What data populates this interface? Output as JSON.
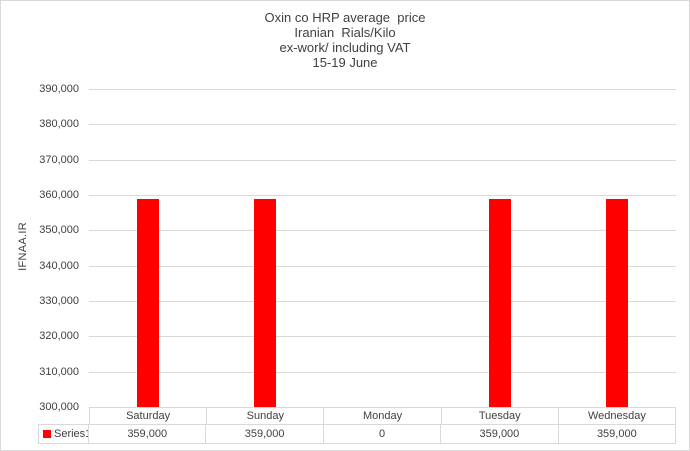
{
  "title": {
    "lines": [
      "Oxin co HRP average  price",
      "Iranian  Rials/Kilo",
      "ex-work/ including VAT",
      "15-19 June"
    ]
  },
  "y_axis": {
    "title": "IFNAA.IR"
  },
  "legend": {
    "series_label": "Series1",
    "swatch_color": "#ff0000"
  },
  "colors": {
    "bar": "#ff0000",
    "gridline": "#d9d9d9",
    "border": "#d9d9d9",
    "text": "#404040",
    "background": "#ffffff"
  },
  "chart_data": {
    "type": "bar",
    "title": "Oxin co HRP average price — Iranian Rials/Kilo — ex-work/ including VAT — 15-19 June",
    "categories": [
      "Saturday",
      "Sunday",
      "Monday",
      "Tuesday",
      "Wednesday"
    ],
    "series": [
      {
        "name": "Series1",
        "color": "#ff0000",
        "values": [
          359000,
          359000,
          0,
          359000,
          359000
        ]
      }
    ],
    "data_table_values": [
      "359,000",
      "359,000",
      "0",
      "359,000",
      "359,000"
    ],
    "xlabel": "",
    "ylabel": "IFNAA.IR",
    "ylim": [
      300000,
      390000
    ],
    "ytick_step": 10000,
    "ytick_format": "thousands-comma",
    "grid": true,
    "legend_position": "bottom-left-of-data-table",
    "data_table": true
  }
}
